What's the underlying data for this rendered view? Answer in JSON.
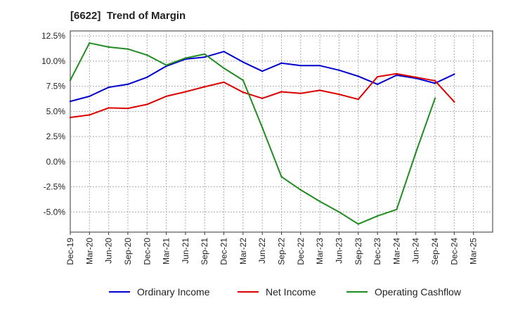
{
  "chart_data": {
    "type": "line",
    "title": "[6622]  Trend of Margin",
    "x": [
      "Dec-19",
      "Mar-20",
      "Jun-20",
      "Sep-20",
      "Dec-20",
      "Mar-21",
      "Jun-21",
      "Sep-21",
      "Dec-21",
      "Mar-22",
      "Jun-22",
      "Sep-22",
      "Dec-22",
      "Mar-23",
      "Jun-23",
      "Sep-23",
      "Dec-23",
      "Mar-24",
      "Jun-24",
      "Sep-24",
      "Dec-24",
      "Mar-25"
    ],
    "y_ticks": [
      12.5,
      10.0,
      7.5,
      5.0,
      2.5,
      0.0,
      -2.5,
      -5.0
    ],
    "y_tick_labels": [
      "12.5%",
      "10.0%",
      "7.5%",
      "5.0%",
      "2.5%",
      "0.0%",
      "-2.5%",
      "-5.0%"
    ],
    "ylim": [
      -7.0,
      13.0
    ],
    "grid": true,
    "legend_position": "bottom",
    "series": [
      {
        "name": "Ordinary Income",
        "color": "#0000cc",
        "values": [
          6.0,
          6.5,
          7.4,
          7.7,
          8.4,
          9.5,
          10.2,
          10.4,
          10.95,
          9.9,
          9.0,
          9.8,
          9.55,
          9.55,
          9.1,
          8.5,
          7.7,
          8.6,
          8.3,
          7.8,
          8.7,
          null
        ]
      },
      {
        "name": "Net Income",
        "color": "#dd0000",
        "values": [
          4.4,
          4.65,
          5.35,
          5.3,
          5.7,
          6.5,
          6.95,
          7.45,
          7.9,
          6.9,
          6.3,
          6.95,
          6.8,
          7.1,
          6.7,
          6.2,
          8.45,
          8.75,
          8.4,
          8.05,
          5.95,
          null
        ]
      },
      {
        "name": "Operating Cashflow",
        "color": "#228b22",
        "values": [
          8.1,
          11.8,
          11.4,
          11.2,
          10.6,
          9.6,
          10.3,
          10.7,
          9.3,
          8.1,
          3.4,
          -1.5,
          -2.8,
          -3.95,
          -5.0,
          -6.2,
          -5.4,
          -4.75,
          0.9,
          6.3,
          null,
          null
        ]
      }
    ]
  }
}
